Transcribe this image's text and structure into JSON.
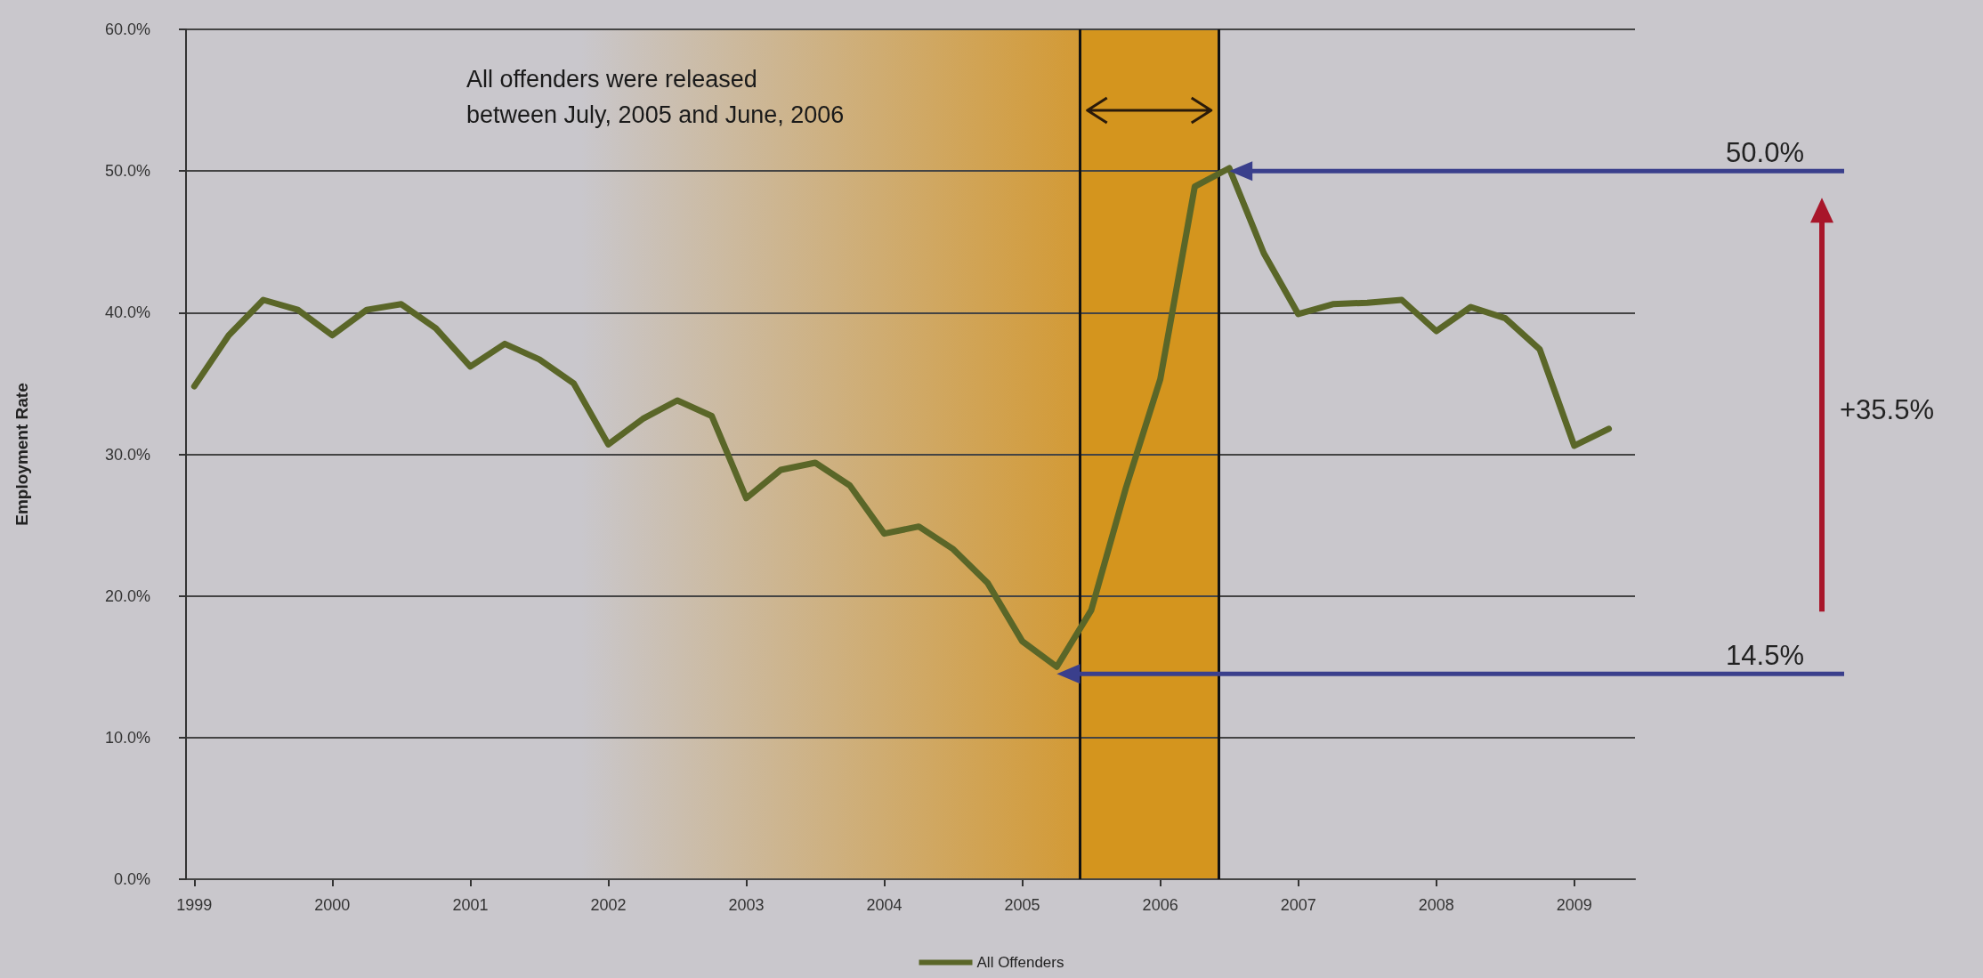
{
  "chart_data": {
    "type": "line",
    "ylabel": "Employment Rate",
    "x": [
      1999,
      1999.25,
      1999.5,
      1999.75,
      2000,
      2000.25,
      2000.5,
      2000.75,
      2001,
      2001.25,
      2001.5,
      2001.75,
      2002,
      2002.25,
      2002.5,
      2002.75,
      2003,
      2003.25,
      2003.5,
      2003.75,
      2004,
      2004.25,
      2004.5,
      2004.75,
      2005,
      2005.25,
      2005.5,
      2005.75,
      2006,
      2006.25,
      2006.5,
      2006.75,
      2007,
      2007.25,
      2007.5,
      2007.75,
      2008,
      2008.25,
      2008.5,
      2008.75,
      2009,
      2009.25
    ],
    "series": [
      {
        "name": "All Offenders",
        "color": "#5a6628",
        "values": [
          34.8,
          38.4,
          40.9,
          40.2,
          38.4,
          40.2,
          40.6,
          38.9,
          36.2,
          37.8,
          36.7,
          35.0,
          30.7,
          32.5,
          33.8,
          32.7,
          26.9,
          28.9,
          29.4,
          27.8,
          24.4,
          24.9,
          23.3,
          20.9,
          16.8,
          15.0,
          19.0,
          27.6,
          35.3,
          48.9,
          50.2,
          44.2,
          39.9,
          40.6,
          40.7,
          40.9,
          38.7,
          40.4,
          39.6,
          37.4,
          30.6,
          31.8
        ]
      }
    ],
    "xlim": [
      1998.94,
      2009.44
    ],
    "xticks": [
      1999,
      2000,
      2001,
      2002,
      2003,
      2004,
      2005,
      2006,
      2007,
      2008,
      2009
    ],
    "ylim": [
      0,
      60
    ],
    "yticks": [
      {
        "value": 0,
        "label": "0.0%"
      },
      {
        "value": 10,
        "label": "10.0%"
      },
      {
        "value": 20,
        "label": "20.0%"
      },
      {
        "value": 30,
        "label": "30.0%"
      },
      {
        "value": 40,
        "label": "40.0%"
      },
      {
        "value": 50,
        "label": "50.0%"
      },
      {
        "value": 60,
        "label": "60.0%"
      }
    ],
    "grid": "y",
    "legend": "bottom",
    "marker": "none",
    "line_style": "solid",
    "bands": [
      {
        "axis": "x",
        "from": 2001.8,
        "to": 2005.42,
        "color": "#d39a35"
      },
      {
        "axis": "x",
        "from": 2005.42,
        "to": 2006.42,
        "color": "#d4951e"
      }
    ],
    "ref_lines": [
      {
        "axis": "x",
        "value": 2005.42,
        "color": "#111111"
      },
      {
        "axis": "x",
        "value": 2006.42,
        "color": "#111111"
      },
      {
        "axis": "y",
        "value": 50.0,
        "label": "50.0%",
        "color": "#3a3f8c"
      },
      {
        "axis": "y",
        "value": 14.5,
        "label": "14.5%",
        "color": "#3a3f8c"
      }
    ],
    "annotations": [
      "All offenders were released\nbetween July, 2005 and June, 2006",
      "+35.5%"
    ]
  }
}
